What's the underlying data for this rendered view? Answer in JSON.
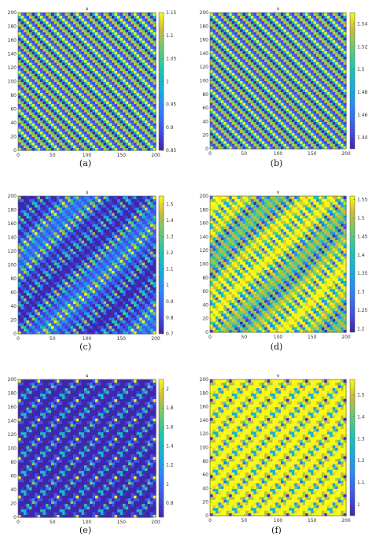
{
  "chart_data": [
    {
      "type": "heatmap",
      "id": "a",
      "title": "u",
      "caption": "(a)",
      "xlim": [
        0,
        200
      ],
      "ylim": [
        0,
        200
      ],
      "xticks": [
        0,
        50,
        100,
        150,
        200
      ],
      "yticks": [
        0,
        20,
        40,
        60,
        80,
        100,
        120,
        140,
        160,
        180,
        200
      ],
      "clim": [
        0.85,
        1.15
      ],
      "cticks": [
        "0.85",
        "0.9",
        "0.95",
        "1",
        "1.05",
        "1.1",
        "1.15"
      ],
      "cvals": [
        0.85,
        0.9,
        0.95,
        1.0,
        1.05,
        1.1,
        1.15
      ],
      "colormap": "parula",
      "pattern": "stripes"
    },
    {
      "type": "heatmap",
      "id": "b",
      "title": "v",
      "caption": "(b)",
      "xlim": [
        0,
        200
      ],
      "ylim": [
        0,
        200
      ],
      "xticks": [
        0,
        50,
        100,
        150,
        200
      ],
      "yticks": [
        0,
        20,
        40,
        60,
        80,
        100,
        120,
        140,
        160,
        180,
        200
      ],
      "clim": [
        1.43,
        1.55
      ],
      "cticks": [
        "1.44",
        "1.46",
        "1.48",
        "1.5",
        "1.52",
        "1.54"
      ],
      "cvals": [
        1.44,
        1.46,
        1.48,
        1.5,
        1.52,
        1.54
      ],
      "colormap": "parula",
      "pattern": "stripes"
    },
    {
      "type": "heatmap",
      "id": "c",
      "title": "u",
      "caption": "(c)",
      "xlim": [
        0,
        200
      ],
      "ylim": [
        0,
        200
      ],
      "xticks": [
        0,
        50,
        100,
        150,
        200
      ],
      "yticks": [
        0,
        20,
        40,
        60,
        80,
        100,
        120,
        140,
        160,
        180,
        200
      ],
      "clim": [
        0.7,
        1.55
      ],
      "cticks": [
        "0.7",
        "0.8",
        "0.9",
        "1",
        "1.1",
        "1.2",
        "1.3",
        "1.4",
        "1.5"
      ],
      "cvals": [
        0.7,
        0.8,
        0.9,
        1.0,
        1.1,
        1.2,
        1.3,
        1.4,
        1.5
      ],
      "colormap": "parula",
      "pattern": "broken-stripes"
    },
    {
      "type": "heatmap",
      "id": "d",
      "title": "v",
      "caption": "(d)",
      "xlim": [
        0,
        200
      ],
      "ylim": [
        0,
        200
      ],
      "xticks": [
        0,
        50,
        100,
        150,
        200
      ],
      "yticks": [
        0,
        20,
        40,
        60,
        80,
        100,
        120,
        140,
        160,
        180,
        200
      ],
      "clim": [
        1.19,
        1.56
      ],
      "cticks": [
        "1.2",
        "1.25",
        "1.3",
        "1.35",
        "1.4",
        "1.45",
        "1.5",
        "1.55"
      ],
      "cvals": [
        1.2,
        1.25,
        1.3,
        1.35,
        1.4,
        1.45,
        1.5,
        1.55
      ],
      "colormap": "parula",
      "pattern": "broken-stripes"
    },
    {
      "type": "heatmap",
      "id": "e",
      "title": "u",
      "caption": "(e)",
      "xlim": [
        0,
        200
      ],
      "ylim": [
        0,
        200
      ],
      "xticks": [
        0,
        50,
        100,
        150,
        200
      ],
      "yticks": [
        0,
        20,
        40,
        60,
        80,
        100,
        120,
        140,
        160,
        180,
        200
      ],
      "clim": [
        0.65,
        2.1
      ],
      "cticks": [
        "0.8",
        "1",
        "1.2",
        "1.4",
        "1.6",
        "1.8",
        "2"
      ],
      "cvals": [
        0.8,
        1.0,
        1.2,
        1.4,
        1.6,
        1.8,
        2.0
      ],
      "colormap": "parula",
      "pattern": "spots"
    },
    {
      "type": "heatmap",
      "id": "f",
      "title": "v",
      "caption": "(f)",
      "xlim": [
        0,
        200
      ],
      "ylim": [
        0,
        200
      ],
      "xticks": [
        0,
        50,
        100,
        150,
        200
      ],
      "yticks": [
        0,
        20,
        40,
        60,
        80,
        100,
        120,
        140,
        160,
        180,
        200
      ],
      "clim": [
        0.95,
        1.57
      ],
      "cticks": [
        "1",
        "1.1",
        "1.2",
        "1.3",
        "1.4",
        "1.5"
      ],
      "cvals": [
        1.0,
        1.1,
        1.2,
        1.3,
        1.4,
        1.5
      ],
      "colormap": "parula",
      "pattern": "spots"
    }
  ]
}
